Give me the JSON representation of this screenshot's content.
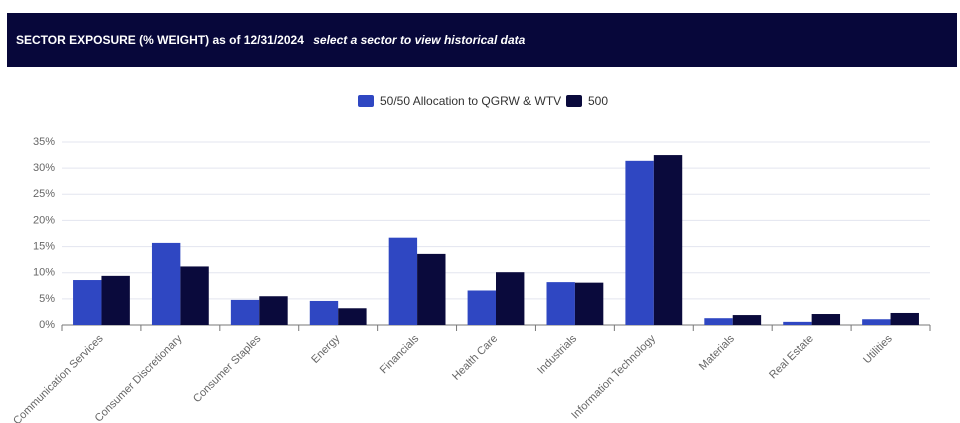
{
  "chart_data": {
    "type": "bar",
    "title": "SECTOR EXPOSURE (% WEIGHT) as of 12/31/2024",
    "subtitle": "select a sector to view historical data",
    "categories": [
      "Communication Services",
      "Consumer Discretionary",
      "Consumer Staples",
      "Energy",
      "Financials",
      "Health Care",
      "Industrials",
      "Information Technology",
      "Materials",
      "Real Estate",
      "Utilities"
    ],
    "series": [
      {
        "name": "50/50 Allocation to QGRW & WTV",
        "color": "#2f47c2",
        "values": [
          8.6,
          15.7,
          4.8,
          4.6,
          16.7,
          6.6,
          8.2,
          31.4,
          1.3,
          0.6,
          1.1
        ]
      },
      {
        "name": "500",
        "color": "#0a0a3c",
        "values": [
          9.4,
          11.2,
          5.5,
          3.2,
          13.6,
          10.1,
          8.1,
          32.5,
          1.9,
          2.1,
          2.3
        ]
      }
    ],
    "ylim": [
      0,
      35
    ],
    "yticks": [
      {
        "value": 0,
        "label": "0%"
      },
      {
        "value": 5,
        "label": "5%"
      },
      {
        "value": 10,
        "label": "10%"
      },
      {
        "value": 15,
        "label": "15%"
      },
      {
        "value": 20,
        "label": "20%"
      },
      {
        "value": 25,
        "label": "25%"
      },
      {
        "value": 30,
        "label": "30%"
      },
      {
        "value": 35,
        "label": "35%"
      }
    ],
    "grid": true
  }
}
